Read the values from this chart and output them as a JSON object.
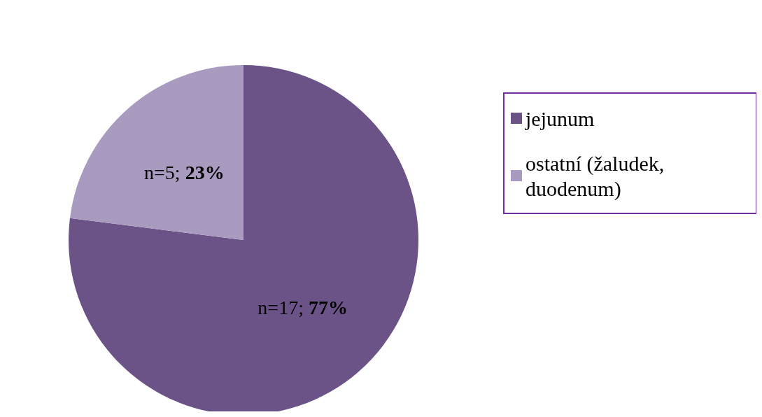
{
  "chart_data": {
    "type": "pie",
    "categories": [
      "jejunum",
      "ostatní (žaludek, duodenum)"
    ],
    "values": [
      77,
      23
    ],
    "colors": [
      "#6b5388",
      "#a99bc0"
    ],
    "value_labels": [
      "n=17; 77%",
      "n=5; 23%"
    ],
    "legend": "right"
  }
}
